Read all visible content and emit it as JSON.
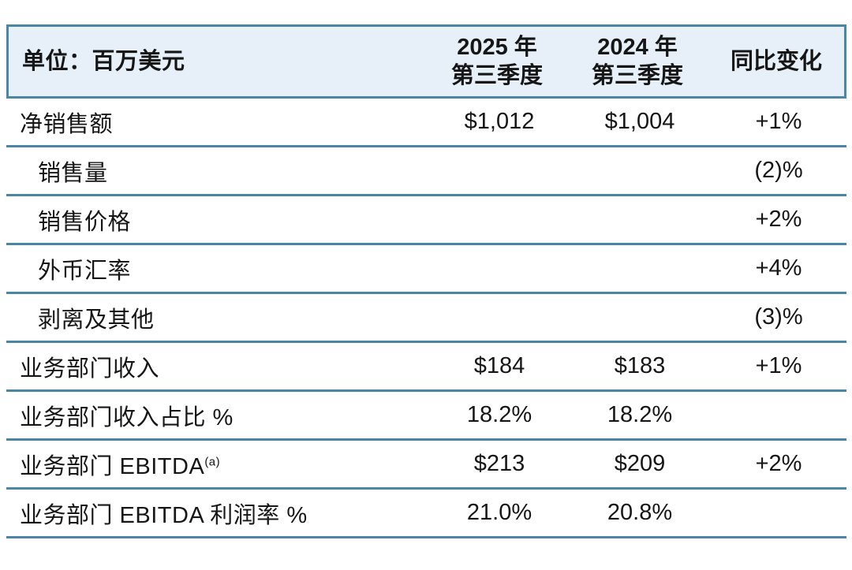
{
  "table": {
    "header": {
      "unit_label": "单位：百万美元",
      "col_2025": {
        "line1": "2025 年",
        "line2": "第三季度"
      },
      "col_2024": {
        "line1": "2024 年",
        "line2": "第三季度"
      },
      "col_yoy": "同比变化"
    },
    "rows": [
      {
        "label": "净销售额",
        "indent": false,
        "sup": "",
        "q3_2025": "$1,012",
        "q3_2024": "$1,004",
        "yoy": "+1%"
      },
      {
        "label": "销售量",
        "indent": true,
        "sup": "",
        "q3_2025": "",
        "q3_2024": "",
        "yoy": "(2)%"
      },
      {
        "label": "销售价格",
        "indent": true,
        "sup": "",
        "q3_2025": "",
        "q3_2024": "",
        "yoy": "+2%"
      },
      {
        "label": "外币汇率",
        "indent": true,
        "sup": "",
        "q3_2025": "",
        "q3_2024": "",
        "yoy": "+4%"
      },
      {
        "label": "剥离及其他",
        "indent": true,
        "sup": "",
        "q3_2025": "",
        "q3_2024": "",
        "yoy": "(3)%"
      },
      {
        "label": "业务部门收入",
        "indent": false,
        "sup": "",
        "q3_2025": "$184",
        "q3_2024": "$183",
        "yoy": "+1%"
      },
      {
        "label": "业务部门收入占比 %",
        "indent": false,
        "sup": "",
        "q3_2025": "18.2%",
        "q3_2024": "18.2%",
        "yoy": ""
      },
      {
        "label": "业务部门 EBITDA",
        "indent": false,
        "sup": "(a)",
        "q3_2025": "$213",
        "q3_2024": "$209",
        "yoy": "+2%"
      },
      {
        "label": "业务部门 EBITDA 利润率 %",
        "indent": false,
        "sup": "",
        "q3_2025": "21.0%",
        "q3_2024": "20.8%",
        "yoy": ""
      }
    ],
    "colors": {
      "border": "#4a86a5",
      "header_bg": "#e7f0f8",
      "text": "#161616",
      "page_bg": "#ffffff"
    }
  }
}
